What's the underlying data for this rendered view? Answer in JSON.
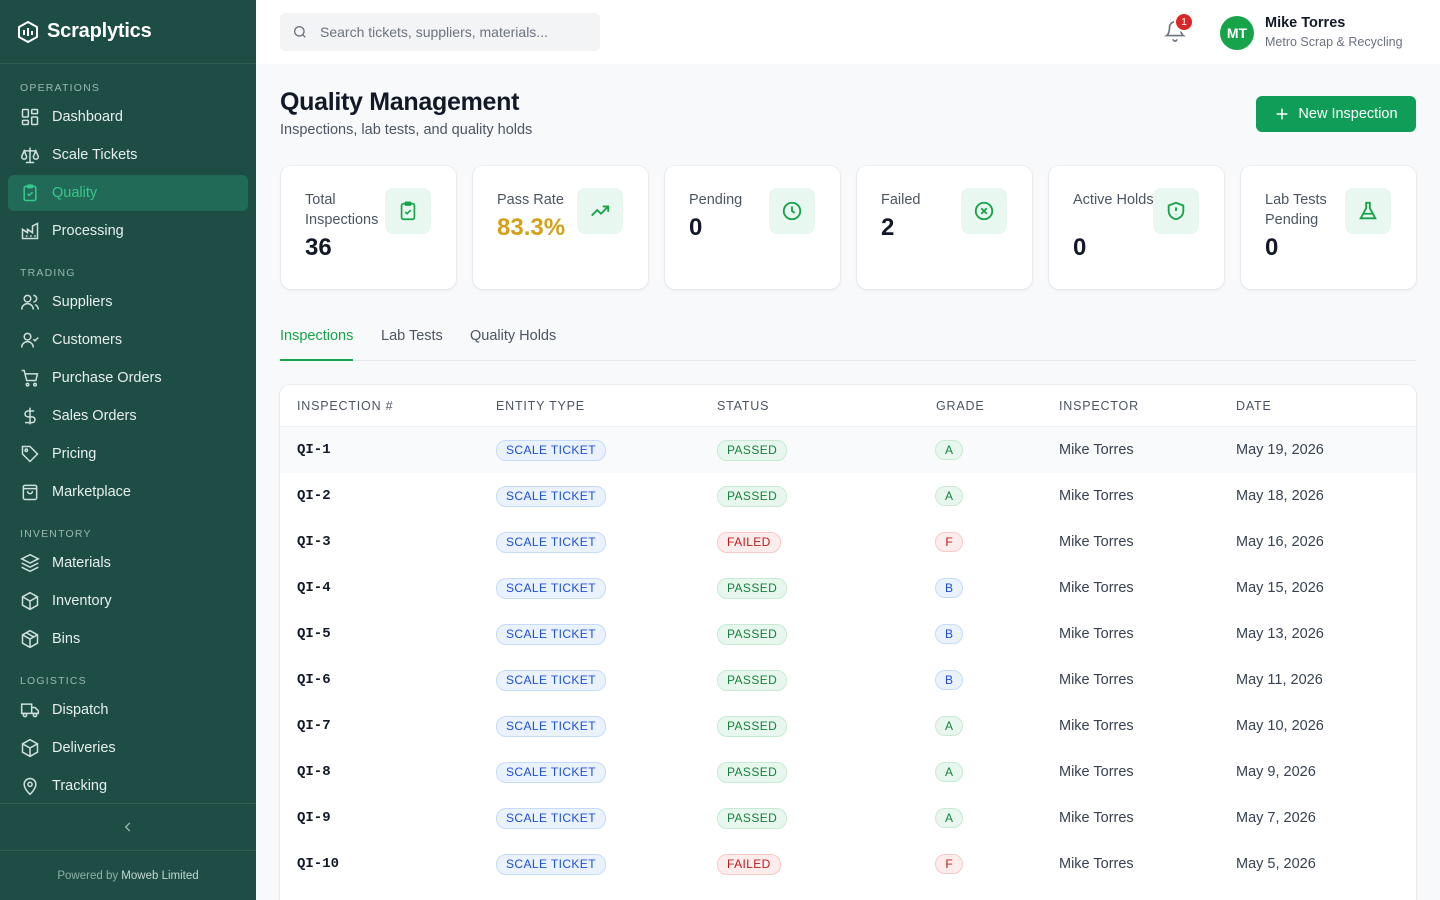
{
  "app": {
    "name": "Scraplytics",
    "footer_prefix": "Powered by",
    "footer_company": "Moweb Limited"
  },
  "sidebar": {
    "sections": {
      "operations": "OPERATIONS",
      "trading": "TRADING",
      "inventory": "INVENTORY",
      "logistics": "LOGISTICS"
    },
    "items": [
      {
        "label": "Dashboard",
        "icon": "dashboard-icon"
      },
      {
        "label": "Scale Tickets",
        "icon": "scale-icon"
      },
      {
        "label": "Quality",
        "icon": "clipboard-check-icon",
        "active": true
      },
      {
        "label": "Processing",
        "icon": "factory-icon"
      },
      {
        "label": "Suppliers",
        "icon": "users-icon"
      },
      {
        "label": "Customers",
        "icon": "user-check-icon"
      },
      {
        "label": "Purchase Orders",
        "icon": "cart-icon"
      },
      {
        "label": "Sales Orders",
        "icon": "dollar-icon"
      },
      {
        "label": "Pricing",
        "icon": "tag-icon"
      },
      {
        "label": "Marketplace",
        "icon": "store-icon"
      },
      {
        "label": "Materials",
        "icon": "layers-icon"
      },
      {
        "label": "Inventory",
        "icon": "box-icon"
      },
      {
        "label": "Bins",
        "icon": "package-icon"
      },
      {
        "label": "Dispatch",
        "icon": "truck-icon"
      },
      {
        "label": "Deliveries",
        "icon": "package-check-icon"
      },
      {
        "label": "Tracking",
        "icon": "map-pin-icon"
      }
    ]
  },
  "header": {
    "search_placeholder": "Search tickets, suppliers, materials...",
    "notification_count": "1",
    "user": {
      "initials": "MT",
      "name": "Mike Torres",
      "org": "Metro Scrap & Recycling"
    }
  },
  "page": {
    "title": "Quality Management",
    "subtitle": "Inspections, lab tests, and quality holds",
    "new_button": "New Inspection"
  },
  "stats": [
    {
      "label": "Total Inspections",
      "value": "36",
      "icon": "clipboard-check-icon"
    },
    {
      "label": "Pass Rate",
      "value": "83.3%",
      "icon": "trending-up-icon"
    },
    {
      "label": "Pending",
      "value": "0",
      "icon": "clock-icon"
    },
    {
      "label": "Failed",
      "value": "2",
      "icon": "x-circle-icon"
    },
    {
      "label": "Active Holds",
      "value": "0",
      "icon": "shield-icon"
    },
    {
      "label": "Lab Tests Pending",
      "value": "0",
      "icon": "flask-icon"
    }
  ],
  "tabs": [
    "Inspections",
    "Lab Tests",
    "Quality Holds"
  ],
  "table": {
    "columns": [
      "INSPECTION #",
      "ENTITY TYPE",
      "STATUS",
      "GRADE",
      "INSPECTOR",
      "DATE"
    ],
    "rows": [
      {
        "id": "QI-1",
        "entity": "SCALE TICKET",
        "status": "PASSED",
        "grade": "A",
        "inspector": "Mike Torres",
        "date": "May 19, 2026"
      },
      {
        "id": "QI-2",
        "entity": "SCALE TICKET",
        "status": "PASSED",
        "grade": "A",
        "inspector": "Mike Torres",
        "date": "May 18, 2026"
      },
      {
        "id": "QI-3",
        "entity": "SCALE TICKET",
        "status": "FAILED",
        "grade": "F",
        "inspector": "Mike Torres",
        "date": "May 16, 2026"
      },
      {
        "id": "QI-4",
        "entity": "SCALE TICKET",
        "status": "PASSED",
        "grade": "B",
        "inspector": "Mike Torres",
        "date": "May 15, 2026"
      },
      {
        "id": "QI-5",
        "entity": "SCALE TICKET",
        "status": "PASSED",
        "grade": "B",
        "inspector": "Mike Torres",
        "date": "May 13, 2026"
      },
      {
        "id": "QI-6",
        "entity": "SCALE TICKET",
        "status": "PASSED",
        "grade": "B",
        "inspector": "Mike Torres",
        "date": "May 11, 2026"
      },
      {
        "id": "QI-7",
        "entity": "SCALE TICKET",
        "status": "PASSED",
        "grade": "A",
        "inspector": "Mike Torres",
        "date": "May 10, 2026"
      },
      {
        "id": "QI-8",
        "entity": "SCALE TICKET",
        "status": "PASSED",
        "grade": "A",
        "inspector": "Mike Torres",
        "date": "May 9, 2026"
      },
      {
        "id": "QI-9",
        "entity": "SCALE TICKET",
        "status": "PASSED",
        "grade": "A",
        "inspector": "Mike Torres",
        "date": "May 7, 2026"
      },
      {
        "id": "QI-10",
        "entity": "SCALE TICKET",
        "status": "FAILED",
        "grade": "F",
        "inspector": "Mike Torres",
        "date": "May 5, 2026"
      }
    ]
  },
  "colors": {
    "sidebar": "#1d4d45",
    "accent": "#16a34a",
    "pass_rate": "#d4a017",
    "danger": "#dc2626"
  }
}
